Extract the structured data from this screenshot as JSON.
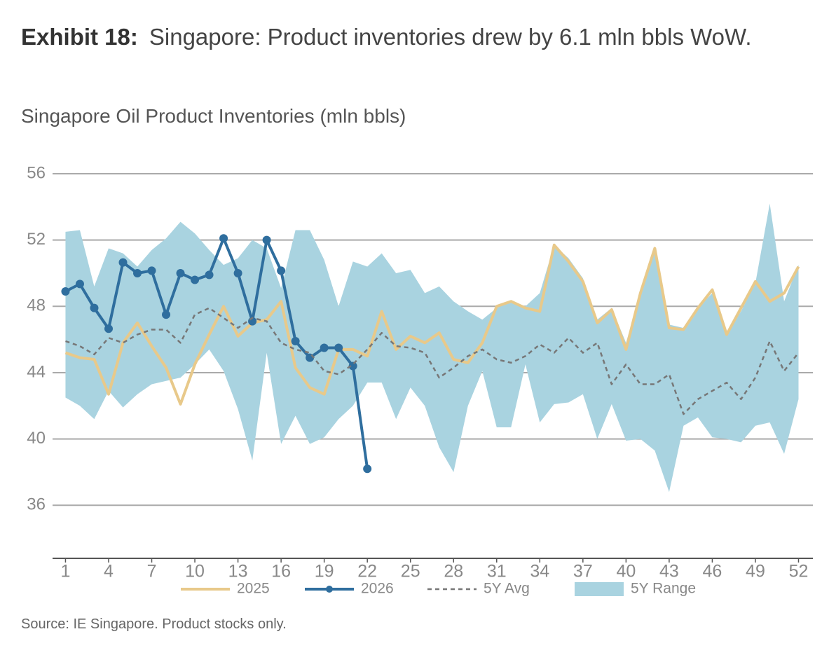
{
  "exhibit": "Exhibit 18:",
  "headline": "Singapore: Product inventories drew by 6.1 mln bbls WoW.",
  "source": "Source: IE Singapore. Product stocks only.",
  "chart_data": {
    "type": "line",
    "title": "Singapore Oil Product Inventories (mln bbls)",
    "x": [
      1,
      2,
      3,
      4,
      5,
      6,
      7,
      8,
      9,
      10,
      11,
      12,
      13,
      14,
      15,
      16,
      17,
      18,
      19,
      20,
      21,
      22,
      23,
      24,
      25,
      26,
      27,
      28,
      29,
      30,
      31,
      32,
      33,
      34,
      35,
      36,
      37,
      38,
      39,
      40,
      41,
      42,
      43,
      44,
      45,
      46,
      47,
      48,
      49,
      50,
      51,
      52
    ],
    "xlim": [
      0.1,
      53
    ],
    "xticks": [
      1,
      4,
      7,
      10,
      13,
      16,
      19,
      22,
      25,
      28,
      31,
      34,
      37,
      40,
      43,
      46,
      49,
      52
    ],
    "ylim": [
      32.8,
      56
    ],
    "yticks": [
      36,
      40,
      44,
      48,
      52,
      56
    ],
    "grid": true,
    "legend": "bottom",
    "series": [
      {
        "name": "2025",
        "color": "#e8c98a",
        "values": [
          45.2,
          44.9,
          44.8,
          42.7,
          45.8,
          47.0,
          45.6,
          44.3,
          42.1,
          44.5,
          46.3,
          48.0,
          46.2,
          47.0,
          47.2,
          48.3,
          44.3,
          43.1,
          42.7,
          45.4,
          45.4,
          45.0,
          47.7,
          45.4,
          46.2,
          45.8,
          46.4,
          44.8,
          44.6,
          45.8,
          48.0,
          48.3,
          47.9,
          47.7,
          51.7,
          50.7,
          49.5,
          47.0,
          47.8,
          45.4,
          48.8,
          51.5,
          46.7,
          46.6,
          47.9,
          49.0,
          46.3,
          47.9,
          49.5,
          48.3,
          48.8,
          50.4
        ]
      },
      {
        "name": "2026",
        "color": "#2f6e9e",
        "markers": true,
        "values": [
          48.9,
          49.35,
          47.9,
          46.65,
          50.65,
          50.0,
          50.15,
          47.5,
          50.0,
          49.6,
          49.9,
          52.1,
          50.0,
          47.1,
          52.0,
          50.15,
          45.9,
          44.9,
          45.5,
          45.5,
          44.4,
          38.2,
          null,
          null,
          null,
          null,
          null,
          null,
          null,
          null,
          null,
          null,
          null,
          null,
          null,
          null,
          null,
          null,
          null,
          null,
          null,
          null,
          null,
          null,
          null,
          null,
          null,
          null,
          null,
          null,
          null,
          null
        ]
      },
      {
        "name": "5Y Avg",
        "color": "#777777",
        "dashed": true,
        "values": [
          45.9,
          45.6,
          45.1,
          46.1,
          45.8,
          46.3,
          46.6,
          46.6,
          45.8,
          47.5,
          47.9,
          47.3,
          46.7,
          47.3,
          47.1,
          45.8,
          45.4,
          45.2,
          44.1,
          43.9,
          44.5,
          45.4,
          46.4,
          45.6,
          45.5,
          45.2,
          43.7,
          44.3,
          45.0,
          45.4,
          44.8,
          44.6,
          45.0,
          45.7,
          45.2,
          46.1,
          45.2,
          45.8,
          43.3,
          44.5,
          43.3,
          43.3,
          43.9,
          41.5,
          42.4,
          42.9,
          43.4,
          42.4,
          43.7,
          45.9,
          44.1,
          45.2
        ]
      },
      {
        "name": "5Y Range",
        "color": "#a9d3e0",
        "area": true,
        "high": [
          52.5,
          52.6,
          49.2,
          51.5,
          51.2,
          50.4,
          51.4,
          52.1,
          53.1,
          52.4,
          51.4,
          50.5,
          50.9,
          52.0,
          51.5,
          49.1,
          52.6,
          52.6,
          50.8,
          48.0,
          50.7,
          50.4,
          51.2,
          50.0,
          50.2,
          48.8,
          49.2,
          48.3,
          47.7,
          47.2,
          47.9,
          48.3,
          48.0,
          48.8,
          51.7,
          50.9,
          49.7,
          47.2,
          47.9,
          45.8,
          48.8,
          51.5,
          46.9,
          46.7,
          47.9,
          48.8,
          46.4,
          47.7,
          49.4,
          54.2,
          48.3,
          50.5
        ],
        "low": [
          42.5,
          42.0,
          41.2,
          42.9,
          41.9,
          42.7,
          43.3,
          43.5,
          43.7,
          44.5,
          45.4,
          44.1,
          41.8,
          38.7,
          45.2,
          39.7,
          41.4,
          39.7,
          40.1,
          41.2,
          42.0,
          43.4,
          43.4,
          41.2,
          43.1,
          42.0,
          39.5,
          38.0,
          42.0,
          44.1,
          40.7,
          40.7,
          44.5,
          41.0,
          42.1,
          42.2,
          42.7,
          40.0,
          42.1,
          39.9,
          40.0,
          39.3,
          36.8,
          40.8,
          41.3,
          40.1,
          40.0,
          39.8,
          40.8,
          41.0,
          39.1,
          42.4
        ]
      }
    ]
  }
}
